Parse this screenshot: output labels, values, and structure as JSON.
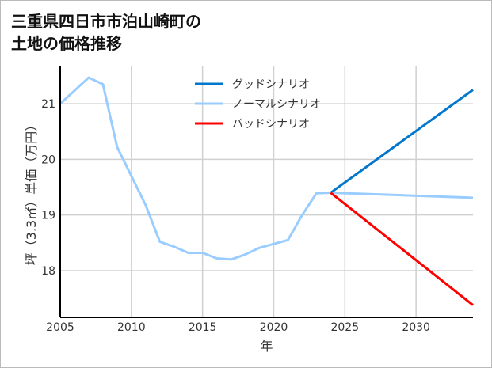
{
  "chart_data": {
    "type": "line",
    "title": "三重県四日市市泊山崎町の\n土地の価格推移",
    "xlabel": "年",
    "ylabel": "坪（3.3㎡）単価（万円）",
    "xlim": [
      2005,
      2034
    ],
    "ylim": [
      17.16,
      21.67
    ],
    "xticks": [
      2005,
      2010,
      2015,
      2020,
      2025,
      2030
    ],
    "yticks": [
      18,
      19,
      20,
      21
    ],
    "grid": true,
    "legend_position": "top-center",
    "series": [
      {
        "name": "グッドシナリオ",
        "color": "#0077cc",
        "x": [
          2024,
          2034
        ],
        "y": [
          19.4,
          21.25
        ]
      },
      {
        "name": "ノーマルシナリオ",
        "color": "#99ccff",
        "x": [
          2005,
          2007,
          2008,
          2009,
          2010,
          2011,
          2012,
          2013,
          2014,
          2015,
          2016,
          2017,
          2018,
          2019,
          2020,
          2021,
          2022,
          2023,
          2024,
          2034
        ],
        "y": [
          21.0,
          21.47,
          21.35,
          20.22,
          19.7,
          19.18,
          18.52,
          18.43,
          18.32,
          18.32,
          18.22,
          18.2,
          18.29,
          18.41,
          18.48,
          18.55,
          19.0,
          19.39,
          19.4,
          19.31
        ]
      },
      {
        "name": "バッドシナリオ",
        "color": "#ff0000",
        "x": [
          2024,
          2034
        ],
        "y": [
          19.4,
          17.38
        ]
      }
    ]
  }
}
